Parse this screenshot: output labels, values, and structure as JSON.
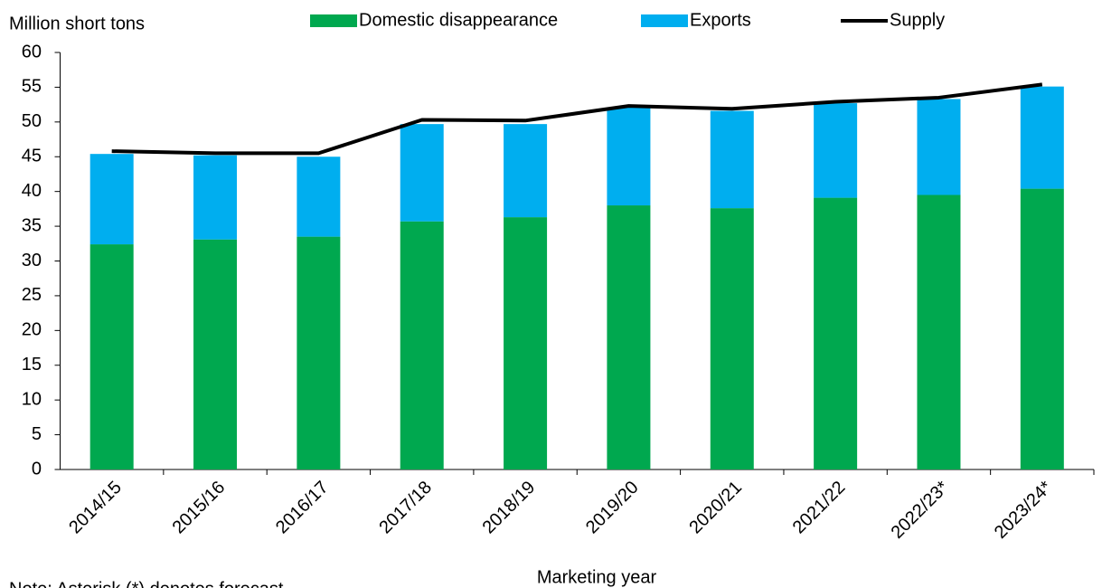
{
  "chart_data": {
    "type": "bar",
    "stacked": true,
    "y_axis_label": "Million short tons",
    "x_axis_label": "Marketing year",
    "note": "Note: Asterisk (*) denotes forecast.",
    "categories": [
      "2014/15",
      "2015/16",
      "2016/17",
      "2017/18",
      "2018/19",
      "2019/20",
      "2020/21",
      "2021/22",
      "2022/23*",
      "2023/24*"
    ],
    "series": [
      {
        "name": "Domestic disappearance",
        "type": "bar",
        "color": "#00a84f",
        "values": [
          32.4,
          33.1,
          33.5,
          35.7,
          36.3,
          38.0,
          37.6,
          39.1,
          39.5,
          40.4
        ]
      },
      {
        "name": "Exports",
        "type": "bar",
        "color": "#00aeef",
        "values": [
          13.0,
          12.1,
          11.5,
          14.0,
          13.4,
          14.1,
          14.0,
          13.6,
          13.8,
          14.7
        ]
      },
      {
        "name": "Supply",
        "type": "line",
        "color": "#000000",
        "values": [
          45.8,
          45.5,
          45.5,
          50.3,
          50.2,
          52.3,
          51.9,
          52.9,
          53.5,
          55.4
        ]
      }
    ],
    "ylim": [
      0,
      60
    ],
    "yticks": [
      0,
      5,
      10,
      15,
      20,
      25,
      30,
      35,
      40,
      45,
      50,
      55,
      60
    ],
    "grid": false
  }
}
